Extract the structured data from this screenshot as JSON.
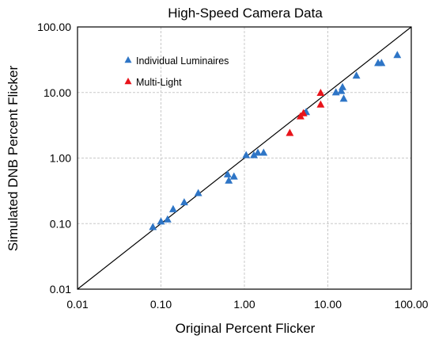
{
  "chart_data": {
    "type": "scatter",
    "title": "High-Speed Camera Data",
    "xlabel": "Original Percent Flicker",
    "ylabel": "Simulated DNB Percent Flicker",
    "xscale": "log",
    "yscale": "log",
    "xlim": [
      0.01,
      100
    ],
    "ylim": [
      0.01,
      100
    ],
    "x_ticks": [
      0.01,
      0.1,
      1,
      10,
      100
    ],
    "y_ticks": [
      0.01,
      0.1,
      1,
      10,
      100
    ],
    "x_tick_labels": [
      "0.01",
      "0.10",
      "1.00",
      "10.00",
      "100.00"
    ],
    "y_tick_labels": [
      "0.01",
      "0.10",
      "1.00",
      "10.00",
      "100.00"
    ],
    "grid": true,
    "legend_position": "top-left",
    "reference_line": "y = x",
    "marker": "triangle",
    "series": [
      {
        "name": "Individual Luminaires",
        "color": "#2E75C6",
        "points": [
          {
            "x": 0.08,
            "y": 0.088
          },
          {
            "x": 0.1,
            "y": 0.107
          },
          {
            "x": 0.12,
            "y": 0.115
          },
          {
            "x": 0.14,
            "y": 0.165
          },
          {
            "x": 0.19,
            "y": 0.21
          },
          {
            "x": 0.28,
            "y": 0.29
          },
          {
            "x": 0.63,
            "y": 0.56
          },
          {
            "x": 0.65,
            "y": 0.45
          },
          {
            "x": 0.75,
            "y": 0.52
          },
          {
            "x": 1.05,
            "y": 1.1
          },
          {
            "x": 1.3,
            "y": 1.1
          },
          {
            "x": 1.45,
            "y": 1.2
          },
          {
            "x": 1.7,
            "y": 1.2
          },
          {
            "x": 5.5,
            "y": 5.0
          },
          {
            "x": 12.5,
            "y": 10.0
          },
          {
            "x": 14.5,
            "y": 10.5
          },
          {
            "x": 15.0,
            "y": 12.0
          },
          {
            "x": 15.5,
            "y": 8.0
          },
          {
            "x": 22.0,
            "y": 18.0
          },
          {
            "x": 40.0,
            "y": 28.0
          },
          {
            "x": 44.0,
            "y": 28.0
          },
          {
            "x": 68.0,
            "y": 37.0
          }
        ]
      },
      {
        "name": "Multi-Light",
        "color": "#E8141B",
        "points": [
          {
            "x": 3.5,
            "y": 2.4
          },
          {
            "x": 4.7,
            "y": 4.3
          },
          {
            "x": 5.1,
            "y": 4.8
          },
          {
            "x": 8.2,
            "y": 9.8
          },
          {
            "x": 8.2,
            "y": 6.5
          }
        ]
      }
    ]
  }
}
